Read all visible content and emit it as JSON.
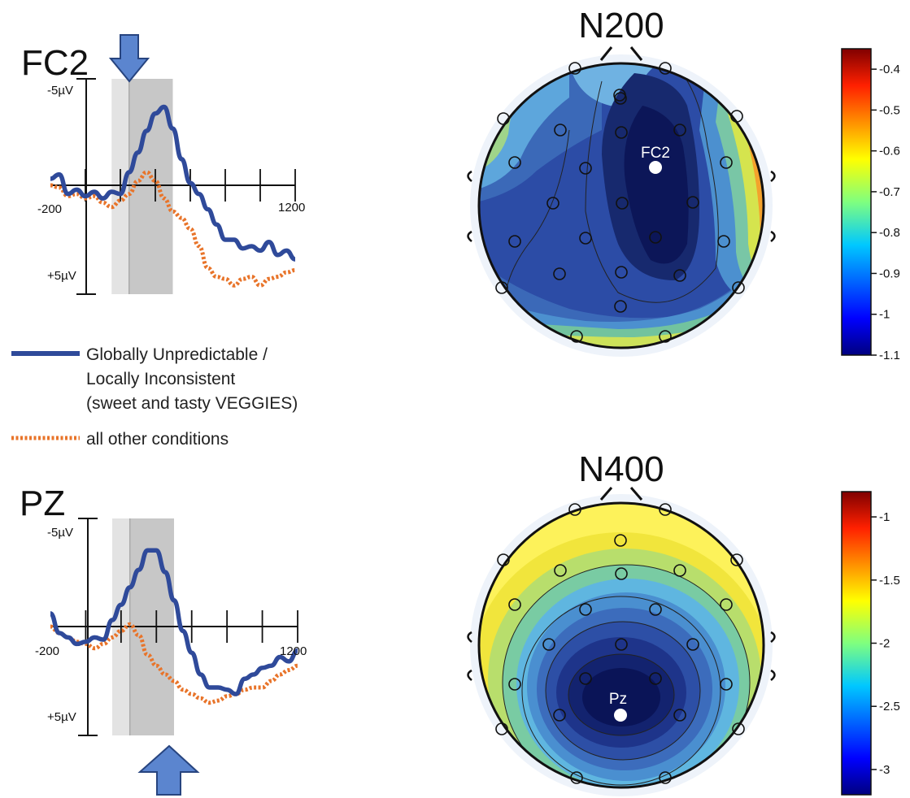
{
  "erp_panels": [
    {
      "electrode": "FC2",
      "y_top_label": "-5µV",
      "y_bottom_label": "+5µV",
      "x_start_label": "-200",
      "x_end_label": "1200",
      "xlim": [
        -200,
        1200
      ],
      "ylim_uv": [
        -5,
        5
      ],
      "arrow": "top",
      "windows_ms": {
        "light": [
          150,
          250
        ],
        "dark": [
          250,
          500
        ]
      }
    },
    {
      "electrode": "PZ",
      "y_top_label": "-5µV",
      "y_bottom_label": "+5µV",
      "x_start_label": "-200",
      "x_end_label": "1200",
      "xlim": [
        -200,
        1200
      ],
      "ylim_uv": [
        -5,
        5
      ],
      "arrow": "bottom",
      "windows_ms": {
        "light": [
          150,
          250
        ],
        "dark": [
          250,
          500
        ]
      }
    }
  ],
  "legend": {
    "items": [
      {
        "lines": [
          "Globally Unpredictable /",
          "Locally Inconsistent",
          "(sweet and tasty VEGGIES)"
        ],
        "color": "#2f4a9a",
        "style": "solid"
      },
      {
        "lines": [
          "all other conditions"
        ],
        "color": "#e8742a",
        "style": "dotted"
      }
    ]
  },
  "topomaps": [
    {
      "title": "N200",
      "highlight_electrode": "FC2",
      "colorbar": {
        "min": -1.1,
        "max": -0.35,
        "ticks": [
          "-0.4",
          "-0.5",
          "-0.6",
          "-0.7",
          "-0.8",
          "-0.9",
          "-1",
          "-1.1"
        ]
      }
    },
    {
      "title": "N400",
      "highlight_electrode": "Pz",
      "colorbar": {
        "min": -3.2,
        "max": -0.8,
        "ticks": [
          "-1",
          "-1.5",
          "-2",
          "-2.5",
          "-3"
        ]
      }
    }
  ],
  "chart_data": [
    {
      "type": "line",
      "title": "FC2",
      "x_unit": "ms",
      "y_unit": "µV",
      "y_axis_inverted": true,
      "xlim": [
        -200,
        1200
      ],
      "ylim": [
        -5,
        5
      ],
      "x": [
        -200,
        -150,
        -100,
        -50,
        0,
        50,
        100,
        150,
        200,
        250,
        300,
        350,
        400,
        450,
        500,
        550,
        600,
        650,
        700,
        750,
        800,
        850,
        900,
        950,
        1000,
        1050,
        1100,
        1150,
        1200
      ],
      "series": [
        {
          "name": "Globally Unpredictable / Locally Inconsistent (sweet and tasty VEGGIES)",
          "color": "#2f4a9a",
          "values": [
            -0.3,
            -0.5,
            0.4,
            0.2,
            0.5,
            0.3,
            0.6,
            0.3,
            0.4,
            -0.6,
            -1.5,
            -2.5,
            -3.3,
            -3.6,
            -2.6,
            -1.2,
            -0.1,
            0.4,
            1.1,
            1.8,
            2.5,
            2.5,
            2.9,
            2.8,
            3.0,
            2.6,
            3.2,
            3.0,
            3.4
          ]
        },
        {
          "name": "all other conditions",
          "color": "#e8742a",
          "values": [
            0,
            0.1,
            0.5,
            0.4,
            0.6,
            0.5,
            0.8,
            1.0,
            0.7,
            0.4,
            -0.2,
            -0.6,
            -0.2,
            0.6,
            1.2,
            1.5,
            2.0,
            2.8,
            3.8,
            4.2,
            4.3,
            4.6,
            4.3,
            4.2,
            4.6,
            4.3,
            4.2,
            4.0,
            3.9
          ]
        }
      ]
    },
    {
      "type": "line",
      "title": "PZ",
      "x_unit": "ms",
      "y_unit": "µV",
      "y_axis_inverted": true,
      "xlim": [
        -200,
        1200
      ],
      "ylim": [
        -5,
        5
      ],
      "x": [
        -200,
        -150,
        -100,
        -50,
        0,
        50,
        100,
        150,
        200,
        250,
        300,
        350,
        400,
        450,
        500,
        550,
        600,
        650,
        700,
        750,
        800,
        850,
        900,
        950,
        1000,
        1050,
        1100,
        1150,
        1200
      ],
      "series": [
        {
          "name": "Globally Unpredictable / Locally Inconsistent (sweet and tasty VEGGIES)",
          "color": "#2f4a9a",
          "values": [
            -0.6,
            0.3,
            0.5,
            0.8,
            0.7,
            0.5,
            0.6,
            -0.3,
            -1.0,
            -1.8,
            -2.6,
            -3.5,
            -3.5,
            -2.5,
            -1.2,
            0.2,
            1.2,
            2.2,
            2.8,
            2.8,
            2.9,
            3.1,
            2.4,
            2.2,
            1.9,
            1.8,
            1.4,
            1.6,
            1.1
          ]
        },
        {
          "name": "all other conditions",
          "color": "#e8742a",
          "values": [
            0,
            0.3,
            0.5,
            0.7,
            0.8,
            1.0,
            0.8,
            0.5,
            0.2,
            -0.1,
            0.4,
            1.3,
            1.8,
            2.2,
            2.5,
            2.9,
            3.1,
            3.3,
            3.5,
            3.4,
            3.2,
            3.1,
            2.9,
            2.8,
            2.8,
            2.5,
            2.2,
            2.0,
            1.8
          ]
        }
      ]
    }
  ]
}
